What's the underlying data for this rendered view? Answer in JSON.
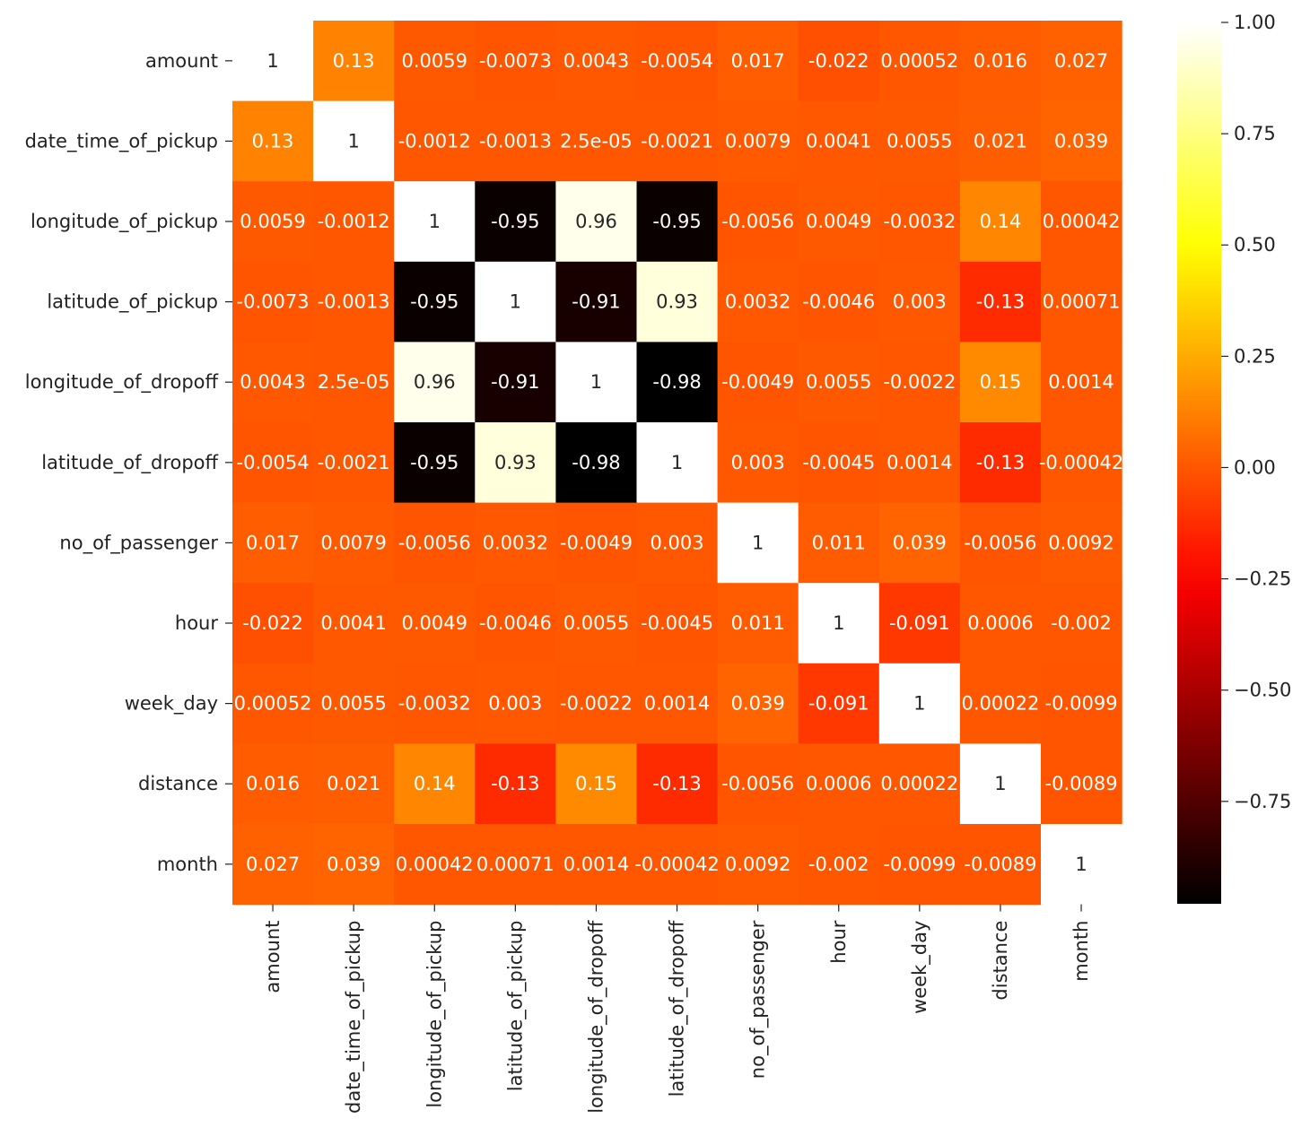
{
  "chart_data": {
    "type": "heatmap",
    "title": "",
    "xlabel": "",
    "ylabel": "",
    "colormap": "hot",
    "grid": false,
    "colorbar_position": "right",
    "colorbar_range": [
      -0.98,
      1.0
    ],
    "colorbar_ticks": [
      1.0,
      0.75,
      0.5,
      0.25,
      0.0,
      -0.25,
      -0.5,
      -0.75
    ],
    "colorbar_tick_labels": [
      "1.00",
      "0.75",
      "0.50",
      "0.25",
      "0.00",
      "−0.25",
      "−0.50",
      "−0.75"
    ],
    "rows": [
      "amount",
      "date_time_of_pickup",
      "longitude_of_pickup",
      "latitude_of_pickup",
      "longitude_of_dropoff",
      "latitude_of_dropoff",
      "no_of_passenger",
      "hour",
      "week_day",
      "distance",
      "month"
    ],
    "columns": [
      "amount",
      "date_time_of_pickup",
      "longitude_of_pickup",
      "latitude_of_pickup",
      "longitude_of_dropoff",
      "latitude_of_dropoff",
      "no_of_passenger",
      "hour",
      "week_day",
      "distance",
      "month"
    ],
    "values": [
      [
        1,
        0.13,
        0.0059,
        -0.0073,
        0.0043,
        -0.0054,
        0.017,
        -0.022,
        0.00052,
        0.016,
        0.027
      ],
      [
        0.13,
        1,
        -0.0012,
        -0.0013,
        2.5e-05,
        -0.0021,
        0.0079,
        0.0041,
        0.0055,
        0.021,
        0.039
      ],
      [
        0.0059,
        -0.0012,
        1,
        -0.95,
        0.96,
        -0.95,
        -0.0056,
        0.0049,
        -0.0032,
        0.14,
        0.00042
      ],
      [
        -0.0073,
        -0.0013,
        -0.95,
        1,
        -0.91,
        0.93,
        0.0032,
        -0.0046,
        0.003,
        -0.13,
        0.00071
      ],
      [
        0.0043,
        2.5e-05,
        0.96,
        -0.91,
        1,
        -0.98,
        -0.0049,
        0.0055,
        -0.0022,
        0.15,
        0.0014
      ],
      [
        -0.0054,
        -0.0021,
        -0.95,
        0.93,
        -0.98,
        1,
        0.003,
        -0.0045,
        0.0014,
        -0.13,
        -0.00042
      ],
      [
        0.017,
        0.0079,
        -0.0056,
        0.0032,
        -0.0049,
        0.003,
        1,
        0.011,
        0.039,
        -0.0056,
        0.0092
      ],
      [
        -0.022,
        0.0041,
        0.0049,
        -0.0046,
        0.0055,
        -0.0045,
        0.011,
        1,
        -0.091,
        0.0006,
        -0.002
      ],
      [
        0.00052,
        0.0055,
        -0.0032,
        0.003,
        -0.0022,
        0.0014,
        0.039,
        -0.091,
        1,
        0.00022,
        -0.0099
      ],
      [
        0.016,
        0.021,
        0.14,
        -0.13,
        0.15,
        -0.13,
        -0.0056,
        0.0006,
        0.00022,
        1,
        -0.0089
      ],
      [
        0.027,
        0.039,
        0.00042,
        0.00071,
        0.0014,
        -0.00042,
        0.0092,
        -0.002,
        -0.0099,
        -0.0089,
        1
      ]
    ],
    "annotations": [
      [
        "1",
        "0.13",
        "0.0059",
        "-0.0073",
        "0.0043",
        "-0.0054",
        "0.017",
        "-0.022",
        "0.00052",
        "0.016",
        "0.027"
      ],
      [
        "0.13",
        "1",
        "-0.0012",
        "-0.0013",
        "2.5e-05",
        "-0.0021",
        "0.0079",
        "0.0041",
        "0.0055",
        "0.021",
        "0.039"
      ],
      [
        "0.0059",
        "-0.0012",
        "1",
        "-0.95",
        "0.96",
        "-0.95",
        "-0.0056",
        "0.0049",
        "-0.0032",
        "0.14",
        "0.00042"
      ],
      [
        "-0.0073",
        "-0.0013",
        "-0.95",
        "1",
        "-0.91",
        "0.93",
        "0.0032",
        "-0.0046",
        "0.003",
        "-0.13",
        "0.00071"
      ],
      [
        "0.0043",
        "2.5e-05",
        "0.96",
        "-0.91",
        "1",
        "-0.98",
        "-0.0049",
        "0.0055",
        "-0.0022",
        "0.15",
        "0.0014"
      ],
      [
        "-0.0054",
        "-0.0021",
        "-0.95",
        "0.93",
        "-0.98",
        "1",
        "0.003",
        "-0.0045",
        "0.0014",
        "-0.13",
        "-0.00042"
      ],
      [
        "0.017",
        "0.0079",
        "-0.0056",
        "0.0032",
        "-0.0049",
        "0.003",
        "1",
        "0.011",
        "0.039",
        "-0.0056",
        "0.0092"
      ],
      [
        "-0.022",
        "0.0041",
        "0.0049",
        "-0.0046",
        "0.0055",
        "-0.0045",
        "0.011",
        "1",
        "-0.091",
        "0.0006",
        "-0.002"
      ],
      [
        "0.00052",
        "0.0055",
        "-0.0032",
        "0.003",
        "-0.0022",
        "0.0014",
        "0.039",
        "-0.091",
        "1",
        "0.00022",
        "-0.0099"
      ],
      [
        "0.016",
        "0.021",
        "0.14",
        "-0.13",
        "0.15",
        "-0.13",
        "-0.0056",
        "0.0006",
        "0.00022",
        "1",
        "-0.0089"
      ],
      [
        "0.027",
        "0.039",
        "0.00042",
        "0.00071",
        "0.0014",
        "-0.00042",
        "0.0092",
        "-0.002",
        "-0.0099",
        "-0.0089",
        "1"
      ]
    ]
  }
}
